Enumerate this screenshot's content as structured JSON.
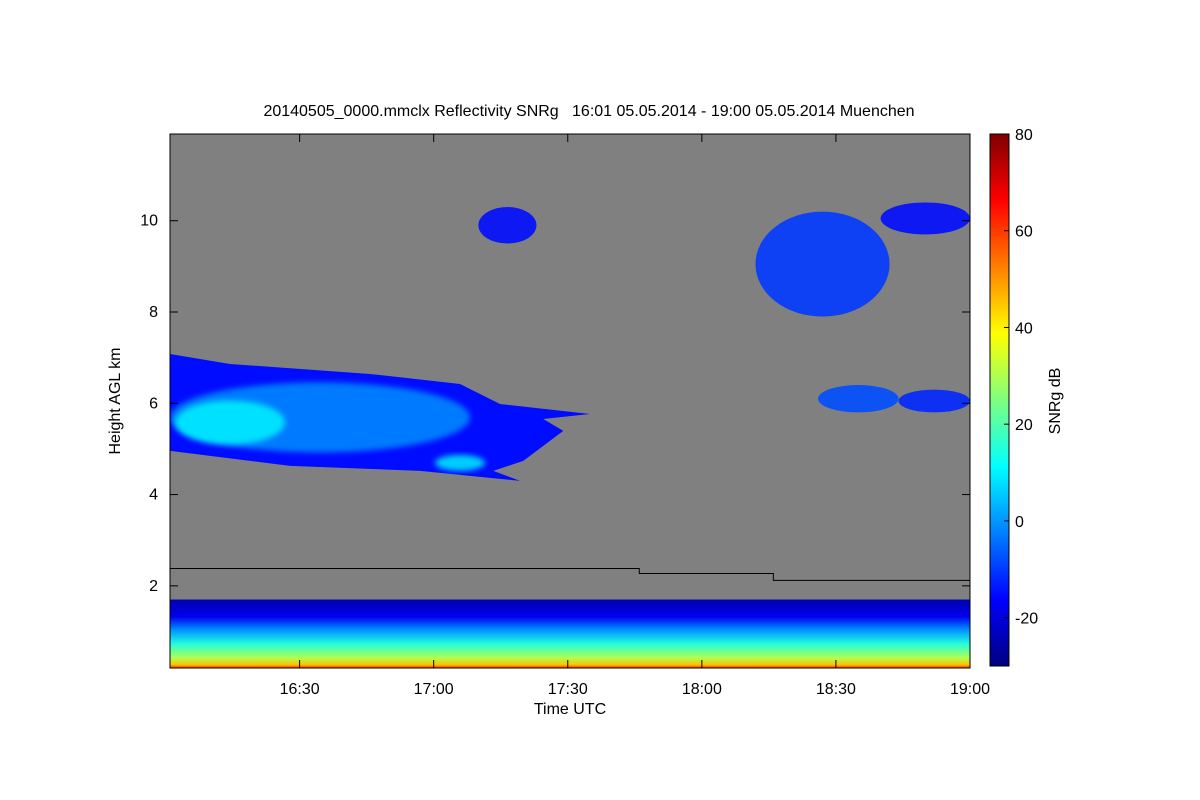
{
  "chart_data": {
    "type": "heatmap",
    "title": "20140505_0000.mmclx Reflectivity SNRg   16:01 05.05.2014 - 19:00 05.05.2014 Muenchen",
    "xlabel": "Time UTC",
    "ylabel": "Height AGL km",
    "x_range_min": [
      961,
      1140
    ],
    "ylim": [
      0.2,
      11.9
    ],
    "x_ticks": [
      {
        "label": "16:30",
        "value": 990
      },
      {
        "label": "17:00",
        "value": 1020
      },
      {
        "label": "17:30",
        "value": 1050
      },
      {
        "label": "18:00",
        "value": 1080
      },
      {
        "label": "18:30",
        "value": 1110
      },
      {
        "label": "19:00",
        "value": 1140
      }
    ],
    "y_ticks": [
      {
        "label": "2",
        "value": 2
      },
      {
        "label": "4",
        "value": 4
      },
      {
        "label": "6",
        "value": 6
      },
      {
        "label": "8",
        "value": 8
      },
      {
        "label": "10",
        "value": 10
      }
    ],
    "colorbar": {
      "label": "SNRg dB",
      "range": [
        -30,
        80
      ],
      "ticks": [
        {
          "label": "-20",
          "value": -20
        },
        {
          "label": "0",
          "value": 0
        },
        {
          "label": "20",
          "value": 20
        },
        {
          "label": "40",
          "value": 40
        },
        {
          "label": "60",
          "value": 60
        },
        {
          "label": "80",
          "value": 80
        }
      ],
      "colormap": [
        "#00007f",
        "#0000ff",
        "#007fff",
        "#00ffff",
        "#7fff7f",
        "#ffff00",
        "#ff7f00",
        "#ff0000",
        "#7f0000"
      ]
    },
    "no_data_color": "#808080",
    "features": [
      {
        "name": "cloud",
        "x_start": 961,
        "x_end": 1049,
        "y_bottom": 4.3,
        "y_top": 7.3,
        "snr_db": 0
      },
      {
        "name": "cloud",
        "x_start": 1030,
        "x_end": 1043,
        "y_bottom": 9.5,
        "y_top": 10.3,
        "snr_db": -15
      },
      {
        "name": "cloud",
        "x_start": 1092,
        "x_end": 1122,
        "y_bottom": 7.9,
        "y_top": 10.2,
        "snr_db": -10
      },
      {
        "name": "cloud",
        "x_start": 1120,
        "x_end": 1140,
        "y_bottom": 9.7,
        "y_top": 10.4,
        "snr_db": -15
      },
      {
        "name": "cloud",
        "x_start": 1106,
        "x_end": 1124,
        "y_bottom": 5.8,
        "y_top": 6.4,
        "snr_db": -8
      },
      {
        "name": "cloud",
        "x_start": 1124,
        "x_end": 1140,
        "y_bottom": 5.8,
        "y_top": 6.3,
        "snr_db": -12
      },
      {
        "name": "boundary_layer",
        "x_start": 961,
        "x_end": 1140,
        "y_bottom": 0.2,
        "y_top": 1.7,
        "snr_db": 25
      }
    ],
    "overlay_line": [
      {
        "x": 961,
        "y": 2.38
      },
      {
        "x": 1066,
        "y": 2.38
      },
      {
        "x": 1066,
        "y": 2.27
      },
      {
        "x": 1096,
        "y": 2.27
      },
      {
        "x": 1096,
        "y": 2.12
      },
      {
        "x": 1140,
        "y": 2.12
      }
    ]
  }
}
